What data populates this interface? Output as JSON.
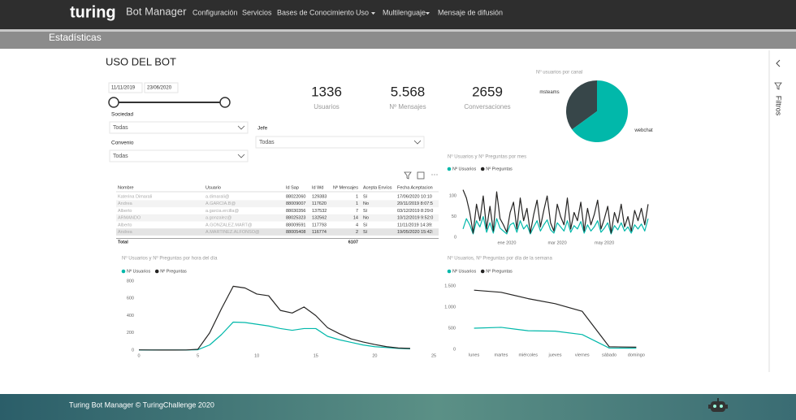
{
  "nav": {
    "brand": "turing",
    "product": "Bot Manager",
    "menu": [
      "Configuración",
      "Servicios",
      "Bases de Conocimiento",
      "Uso",
      "Multilenguaje",
      "Mensaje de difusión"
    ]
  },
  "page_title": "Estadísticas",
  "report": {
    "title": "USO DEL BOT",
    "date_from": "11/11/2019",
    "date_to": "23/06/2020",
    "filters": [
      {
        "label": "Sociedad",
        "value": "Todas"
      },
      {
        "label": "Convenio",
        "value": "Todas"
      },
      {
        "label": "Jefe",
        "value": "Todas"
      }
    ],
    "kpis": [
      {
        "value": "1336",
        "label": "Usuarios"
      },
      {
        "value": "5.568",
        "label": "Nº Mensajes"
      },
      {
        "value": "2659",
        "label": "Conversaciones"
      }
    ],
    "table": {
      "columns": [
        "Nombre",
        "Usuario",
        "Id Sap",
        "Id Wd",
        "Nº Mensajes",
        "Acepta Envíos",
        "Fecha Aceptacion"
      ],
      "rows": [
        [
          "Katerina Dimarali",
          "a.dimarali@",
          "88022060",
          "129383",
          "1",
          "Sí",
          "17/06/2020 10:10"
        ],
        [
          "Andrea",
          "A.GARCIA.B@",
          "88009007",
          "117620",
          "1",
          "No",
          "20/11/2019 8:07:5"
        ],
        [
          "Alberto",
          "a.garcia.ercilla@",
          "88030356",
          "137532",
          "7",
          "Sí",
          "03/12/2019 8:29:0"
        ],
        [
          "ARMANDO",
          "a.gonzalez@",
          "88025323",
          "132562",
          "14",
          "No",
          "10/12/2019 9:52:0"
        ],
        [
          "Alberto",
          "A.GONZALEZ.MART@",
          "88009591",
          "117793",
          "4",
          "Sí",
          "11/11/2019 14:39:"
        ],
        [
          "Andrea",
          "A.MARTINEZ.ALFONSO@",
          "88005408",
          "116774",
          "2",
          "Sí",
          "19/05/2020 15:42:"
        ]
      ],
      "total_label": "Total",
      "total": "6107"
    }
  },
  "side_panel": "Filtros",
  "footer": "Turing Bot Manager © TuringChallenge 2020",
  "chart_data": [
    {
      "type": "pie",
      "title": "Nº usuarios por canal",
      "categories": [
        "msteams",
        "webchat"
      ],
      "values": [
        35,
        65
      ],
      "colors": [
        "#374649",
        "#01b8aa"
      ]
    },
    {
      "type": "line",
      "title": "Nº Usuarios y Nº Preguntas por mes",
      "categories": [
        null,
        null,
        null,
        null,
        null,
        null,
        null,
        null,
        null,
        null,
        null,
        null,
        null,
        "ene 2020",
        null,
        null,
        null,
        null,
        null,
        null,
        null,
        null,
        null,
        null,
        null,
        null,
        null,
        null,
        "mar 2020",
        null,
        null,
        null,
        null,
        null,
        null,
        null,
        null,
        null,
        null,
        null,
        null,
        null,
        "may 2020",
        null,
        null,
        null,
        null,
        null,
        null,
        null,
        null,
        null,
        null,
        null,
        null,
        null
      ],
      "series": [
        {
          "name": "Nº Usuarios",
          "color": "#01b8aa",
          "values": [
            20,
            45,
            30,
            8,
            40,
            25,
            50,
            12,
            35,
            10,
            45,
            22,
            15,
            8,
            30,
            35,
            12,
            40,
            20,
            30,
            8,
            25,
            40,
            15,
            30,
            42,
            18,
            10,
            35,
            25,
            15,
            40,
            12,
            28,
            20,
            38,
            10,
            30,
            15,
            25,
            40,
            12,
            22,
            35,
            8,
            28,
            18,
            35,
            15,
            25,
            10,
            30,
            20,
            32,
            15,
            45
          ]
        },
        {
          "name": "Nº Preguntas",
          "color": "#252423",
          "values": [
            115,
            95,
            60,
            10,
            80,
            40,
            100,
            20,
            75,
            15,
            110,
            45,
            30,
            12,
            60,
            85,
            20,
            95,
            40,
            70,
            10,
            55,
            90,
            25,
            65,
            100,
            35,
            15,
            80,
            50,
            30,
            95,
            20,
            60,
            40,
            85,
            15,
            70,
            30,
            55,
            90,
            20,
            45,
            75,
            10,
            60,
            35,
            80,
            25,
            50,
            15,
            65,
            40,
            70,
            30,
            80
          ]
        }
      ],
      "ylim": [
        0,
        130
      ],
      "yticks": [
        0,
        50,
        100
      ],
      "grid": false
    },
    {
      "type": "line",
      "title": "Nº Usuarios y Nº Preguntas por hora del día",
      "x": [
        0,
        1,
        2,
        3,
        4,
        5,
        6,
        7,
        8,
        9,
        10,
        11,
        12,
        13,
        14,
        15,
        16,
        17,
        18,
        19,
        20,
        21,
        22,
        23
      ],
      "series": [
        {
          "name": "Nº Usuarios",
          "color": "#01b8aa",
          "values": [
            2,
            1,
            1,
            1,
            2,
            5,
            60,
            180,
            325,
            320,
            300,
            280,
            250,
            230,
            250,
            250,
            160,
            120,
            90,
            60,
            40,
            30,
            20,
            15
          ]
        },
        {
          "name": "Nº Preguntas",
          "color": "#252423",
          "values": [
            3,
            2,
            1,
            1,
            2,
            10,
            200,
            480,
            740,
            720,
            650,
            630,
            460,
            430,
            500,
            400,
            260,
            190,
            130,
            95,
            65,
            40,
            25,
            20
          ]
        }
      ],
      "xlim": [
        0,
        25
      ],
      "xticks": [
        0,
        5,
        10,
        15,
        20,
        25
      ],
      "ylim": [
        0,
        800
      ],
      "yticks": [
        0,
        200,
        400,
        600,
        800
      ],
      "grid": false
    },
    {
      "type": "line",
      "title": "Nº Usuarios, Nº Preguntas por día de la semana",
      "categories": [
        "lunes",
        "martes",
        "miércoles",
        "jueves",
        "viernes",
        "sábado",
        "domingo"
      ],
      "series": [
        {
          "name": "Nº Usuarios",
          "color": "#01b8aa",
          "values": [
            500,
            520,
            440,
            430,
            350,
            30,
            25
          ]
        },
        {
          "name": "Nº Preguntas",
          "color": "#252423",
          "values": [
            1400,
            1350,
            1200,
            1080,
            900,
            60,
            50
          ]
        }
      ],
      "ylim": [
        0,
        1500
      ],
      "yticks": [
        0,
        500,
        {
          "value": 1000,
          "label": "1.000"
        },
        {
          "value": 1500,
          "label": "1.500"
        }
      ],
      "grid": false
    }
  ]
}
